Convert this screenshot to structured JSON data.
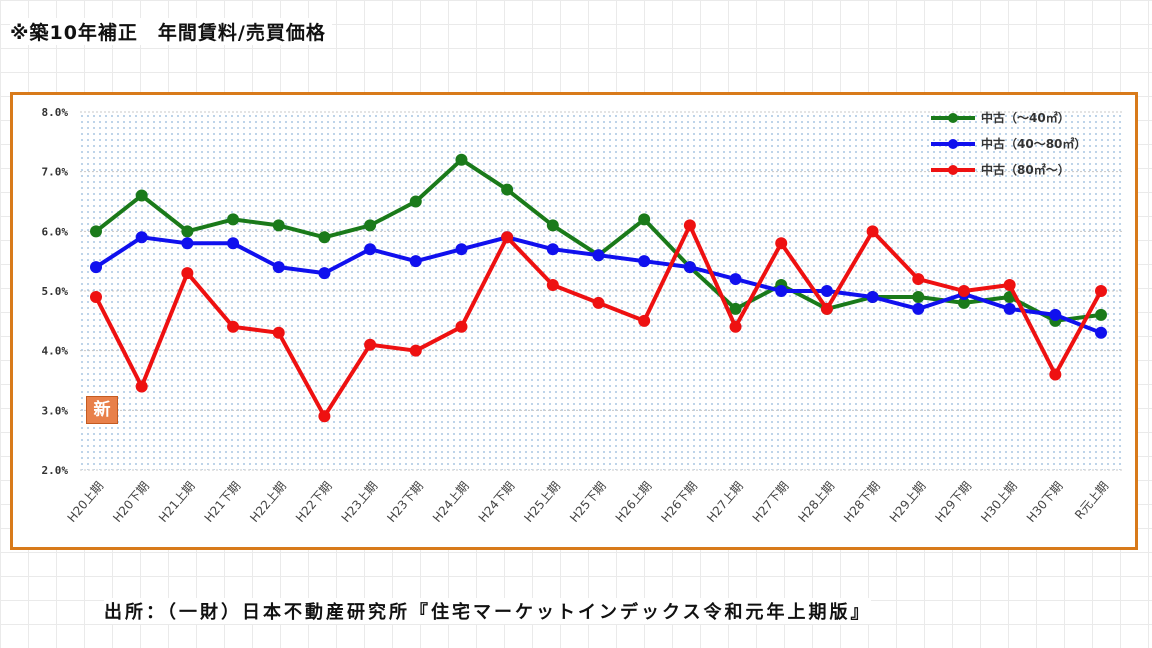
{
  "title": "※築10年補正　年間賃料/売買価格",
  "source": "出所：（一財）日本不動産研究所『住宅マーケットインデックス令和元年上期版』",
  "badge": "新",
  "colors": {
    "frame": "#d87a1a",
    "green": "#1a7a1a",
    "blue": "#1010ee",
    "red": "#ee1111"
  },
  "chart_data": {
    "type": "line",
    "categories": [
      "H20上期",
      "H20下期",
      "H21上期",
      "H21下期",
      "H22上期",
      "H22下期",
      "H23上期",
      "H23下期",
      "H24上期",
      "H24下期",
      "H25上期",
      "H25下期",
      "H26上期",
      "H26下期",
      "H27上期",
      "H27下期",
      "H28上期",
      "H28下期",
      "H29上期",
      "H29下期",
      "H30上期",
      "H30下期",
      "R元上期"
    ],
    "yticks": [
      "2.0%",
      "3.0%",
      "4.0%",
      "5.0%",
      "6.0%",
      "7.0%",
      "8.0%"
    ],
    "ylim": [
      2.0,
      8.0
    ],
    "grid": true,
    "legend_position": "top-right",
    "series": [
      {
        "name": "中古（～40㎡）",
        "color": "#1a7a1a",
        "values": [
          6.0,
          6.6,
          6.0,
          6.2,
          6.1,
          5.9,
          6.1,
          6.5,
          7.2,
          6.7,
          6.1,
          5.6,
          6.2,
          5.4,
          4.7,
          5.1,
          4.7,
          4.9,
          4.9,
          4.8,
          4.9,
          4.5,
          4.6
        ]
      },
      {
        "name": "中古（40～80㎡）",
        "color": "#1010ee",
        "values": [
          5.4,
          5.9,
          5.8,
          5.8,
          5.4,
          5.3,
          5.7,
          5.5,
          5.7,
          5.9,
          5.7,
          5.6,
          5.5,
          5.4,
          5.2,
          5.0,
          5.0,
          4.9,
          4.7,
          4.95,
          4.7,
          4.6,
          4.3
        ]
      },
      {
        "name": "中古（80㎡～）",
        "color": "#ee1111",
        "values": [
          4.9,
          3.4,
          5.3,
          4.4,
          4.3,
          2.9,
          4.1,
          4.0,
          4.4,
          5.9,
          5.1,
          4.8,
          4.5,
          6.1,
          4.4,
          5.8,
          4.7,
          6.0,
          5.2,
          5.0,
          5.1,
          3.6,
          5.0
        ]
      }
    ]
  }
}
